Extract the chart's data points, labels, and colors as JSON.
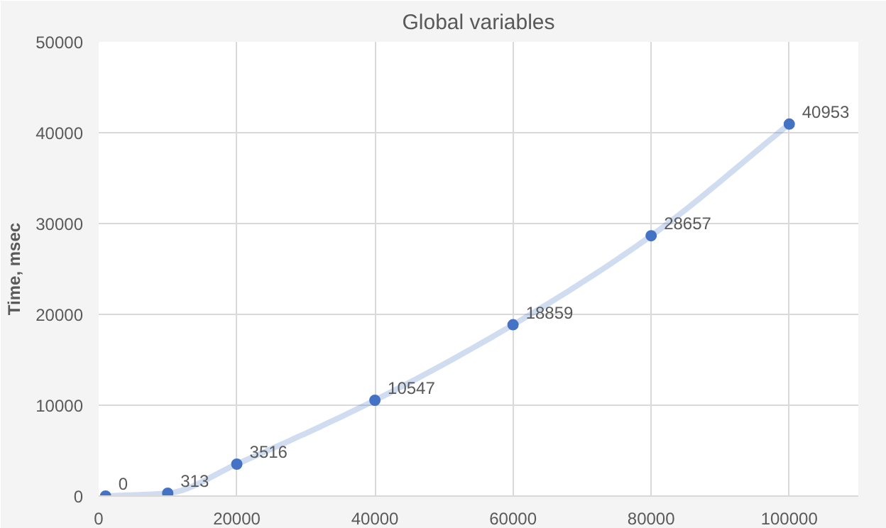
{
  "chart_data": {
    "type": "line",
    "title": "Global variables",
    "ylabel": "Time, msec",
    "x": [
      1000,
      10000,
      20000,
      40000,
      60000,
      80000,
      100000
    ],
    "series": [
      {
        "color": "#4472c4",
        "values": [
          0,
          313,
          3516,
          10547,
          18859,
          28657,
          40953
        ]
      }
    ],
    "xlim": [
      0,
      110000
    ],
    "xticks": [
      0,
      20000,
      40000,
      60000,
      80000,
      100000
    ],
    "ylim": [
      0,
      50000
    ],
    "yticks": [
      0,
      10000,
      20000,
      30000,
      40000,
      50000
    ],
    "grid": true,
    "marker": "circle",
    "data_labels": true,
    "line_style": "solid"
  }
}
